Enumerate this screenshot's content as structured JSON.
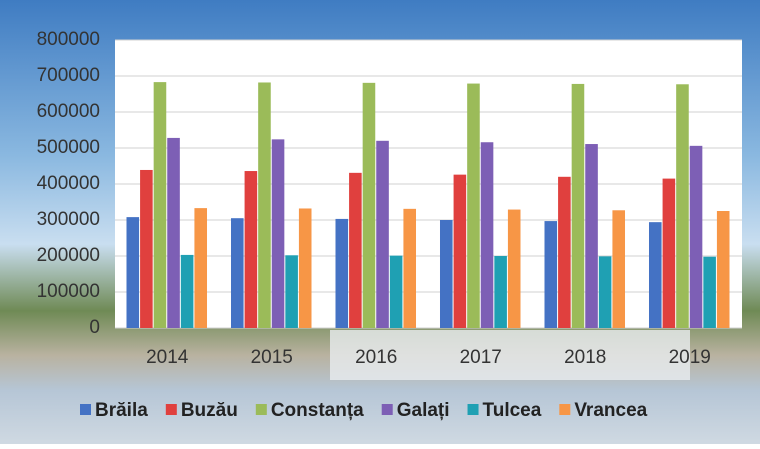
{
  "chart_data": {
    "type": "bar",
    "categories": [
      "2014",
      "2015",
      "2016",
      "2017",
      "2018",
      "2019"
    ],
    "series": [
      {
        "name": "Brăila",
        "color": "#4472c4",
        "values": [
          308000,
          305000,
          303000,
          300000,
          297000,
          294000
        ]
      },
      {
        "name": "Buzău",
        "color": "#e0403e",
        "values": [
          439000,
          436000,
          431000,
          426000,
          420000,
          415000
        ]
      },
      {
        "name": "Constanța",
        "color": "#9bbb59",
        "values": [
          683000,
          682000,
          681000,
          679000,
          678000,
          677000
        ]
      },
      {
        "name": "Galați",
        "color": "#7d5fb5",
        "values": [
          528000,
          524000,
          520000,
          516000,
          511000,
          506000
        ]
      },
      {
        "name": "Tulcea",
        "color": "#1fa0b3",
        "values": [
          203000,
          202000,
          201000,
          200000,
          199000,
          198000
        ]
      },
      {
        "name": "Vrancea",
        "color": "#f79646",
        "values": [
          333000,
          332000,
          331000,
          329000,
          327000,
          325000
        ]
      }
    ],
    "ylim": [
      0,
      800000
    ],
    "yticks": [
      0,
      100000,
      200000,
      300000,
      400000,
      500000,
      600000,
      700000,
      800000
    ],
    "grid": true
  }
}
